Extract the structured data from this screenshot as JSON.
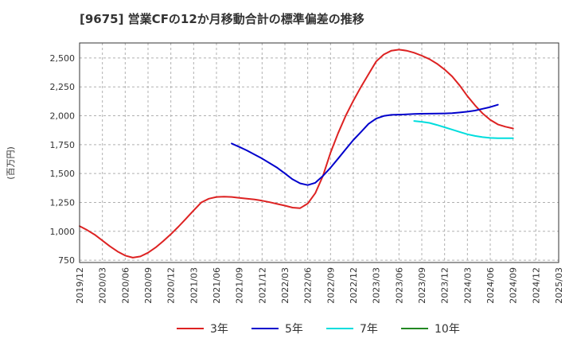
{
  "chart_data": {
    "type": "line",
    "title": "[9675]  営業CFの12か月移動合計の標準偏差の推移",
    "ylabel": "(百万円)",
    "xlabel": "",
    "x_ticks": [
      "2019/12",
      "2020/03",
      "2020/06",
      "2020/09",
      "2020/12",
      "2021/03",
      "2021/06",
      "2021/09",
      "2021/12",
      "2022/03",
      "2022/06",
      "2022/09",
      "2022/12",
      "2023/03",
      "2023/06",
      "2023/09",
      "2023/12",
      "2024/03",
      "2024/06",
      "2024/09",
      "2024/12",
      "2025/03"
    ],
    "y_ticks": [
      "750",
      "1,000",
      "1,250",
      "1,500",
      "1,750",
      "2,000",
      "2,250",
      "2,500"
    ],
    "ylim": [
      730,
      2630
    ],
    "grid": true,
    "legend_position": "bottom",
    "series": [
      {
        "name": "3年",
        "color": "#dd2222",
        "points": [
          [
            "2019/12",
            1045
          ],
          [
            "2020/01",
            1010
          ],
          [
            "2020/02",
            970
          ],
          [
            "2020/03",
            920
          ],
          [
            "2020/04",
            870
          ],
          [
            "2020/05",
            825
          ],
          [
            "2020/06",
            790
          ],
          [
            "2020/07",
            772
          ],
          [
            "2020/08",
            782
          ],
          [
            "2020/09",
            815
          ],
          [
            "2020/10",
            860
          ],
          [
            "2020/11",
            915
          ],
          [
            "2020/12",
            975
          ],
          [
            "2021/01",
            1040
          ],
          [
            "2021/02",
            1110
          ],
          [
            "2021/03",
            1180
          ],
          [
            "2021/04",
            1250
          ],
          [
            "2021/05",
            1282
          ],
          [
            "2021/06",
            1297
          ],
          [
            "2021/07",
            1300
          ],
          [
            "2021/08",
            1297
          ],
          [
            "2021/09",
            1290
          ],
          [
            "2021/10",
            1283
          ],
          [
            "2021/11",
            1275
          ],
          [
            "2021/12",
            1265
          ],
          [
            "2022/01",
            1252
          ],
          [
            "2022/02",
            1237
          ],
          [
            "2022/03",
            1222
          ],
          [
            "2022/04",
            1205
          ],
          [
            "2022/05",
            1200
          ],
          [
            "2022/06",
            1240
          ],
          [
            "2022/07",
            1330
          ],
          [
            "2022/08",
            1480
          ],
          [
            "2022/09",
            1680
          ],
          [
            "2022/10",
            1850
          ],
          [
            "2022/11",
            2000
          ],
          [
            "2022/12",
            2130
          ],
          [
            "2023/01",
            2250
          ],
          [
            "2023/02",
            2360
          ],
          [
            "2023/03",
            2470
          ],
          [
            "2023/04",
            2530
          ],
          [
            "2023/05",
            2563
          ],
          [
            "2023/06",
            2572
          ],
          [
            "2023/07",
            2563
          ],
          [
            "2023/08",
            2545
          ],
          [
            "2023/09",
            2520
          ],
          [
            "2023/10",
            2490
          ],
          [
            "2023/11",
            2450
          ],
          [
            "2023/12",
            2400
          ],
          [
            "2024/01",
            2340
          ],
          [
            "2024/02",
            2260
          ],
          [
            "2024/03",
            2170
          ],
          [
            "2024/04",
            2090
          ],
          [
            "2024/05",
            2020
          ],
          [
            "2024/06",
            1965
          ],
          [
            "2024/07",
            1925
          ],
          [
            "2024/08",
            1905
          ],
          [
            "2024/09",
            1890
          ]
        ]
      },
      {
        "name": "5年",
        "color": "#0000cc",
        "points": [
          [
            "2021/08",
            1760
          ],
          [
            "2021/09",
            1730
          ],
          [
            "2021/10",
            1700
          ],
          [
            "2021/11",
            1665
          ],
          [
            "2021/12",
            1630
          ],
          [
            "2022/01",
            1590
          ],
          [
            "2022/02",
            1550
          ],
          [
            "2022/03",
            1500
          ],
          [
            "2022/04",
            1450
          ],
          [
            "2022/05",
            1415
          ],
          [
            "2022/06",
            1400
          ],
          [
            "2022/07",
            1420
          ],
          [
            "2022/08",
            1480
          ],
          [
            "2022/09",
            1550
          ],
          [
            "2022/10",
            1630
          ],
          [
            "2022/11",
            1710
          ],
          [
            "2022/12",
            1790
          ],
          [
            "2023/01",
            1860
          ],
          [
            "2023/02",
            1930
          ],
          [
            "2023/03",
            1975
          ],
          [
            "2023/04",
            1998
          ],
          [
            "2023/05",
            2008
          ],
          [
            "2023/06",
            2010
          ],
          [
            "2023/07",
            2012
          ],
          [
            "2023/08",
            2015
          ],
          [
            "2023/09",
            2017
          ],
          [
            "2023/10",
            2018
          ],
          [
            "2023/11",
            2019
          ],
          [
            "2023/12",
            2020
          ],
          [
            "2024/01",
            2023
          ],
          [
            "2024/02",
            2028
          ],
          [
            "2024/03",
            2035
          ],
          [
            "2024/04",
            2045
          ],
          [
            "2024/05",
            2060
          ],
          [
            "2024/06",
            2075
          ],
          [
            "2024/07",
            2095
          ]
        ]
      },
      {
        "name": "7年",
        "color": "#00dddd",
        "points": [
          [
            "2023/08",
            1955
          ],
          [
            "2023/09",
            1948
          ],
          [
            "2023/10",
            1938
          ],
          [
            "2023/11",
            1920
          ],
          [
            "2023/12",
            1900
          ],
          [
            "2024/01",
            1880
          ],
          [
            "2024/02",
            1860
          ],
          [
            "2024/03",
            1840
          ],
          [
            "2024/04",
            1825
          ],
          [
            "2024/05",
            1815
          ],
          [
            "2024/06",
            1808
          ],
          [
            "2024/07",
            1805
          ],
          [
            "2024/08",
            1805
          ],
          [
            "2024/09",
            1805
          ]
        ]
      },
      {
        "name": "10年",
        "color": "#228822",
        "points": []
      }
    ]
  }
}
